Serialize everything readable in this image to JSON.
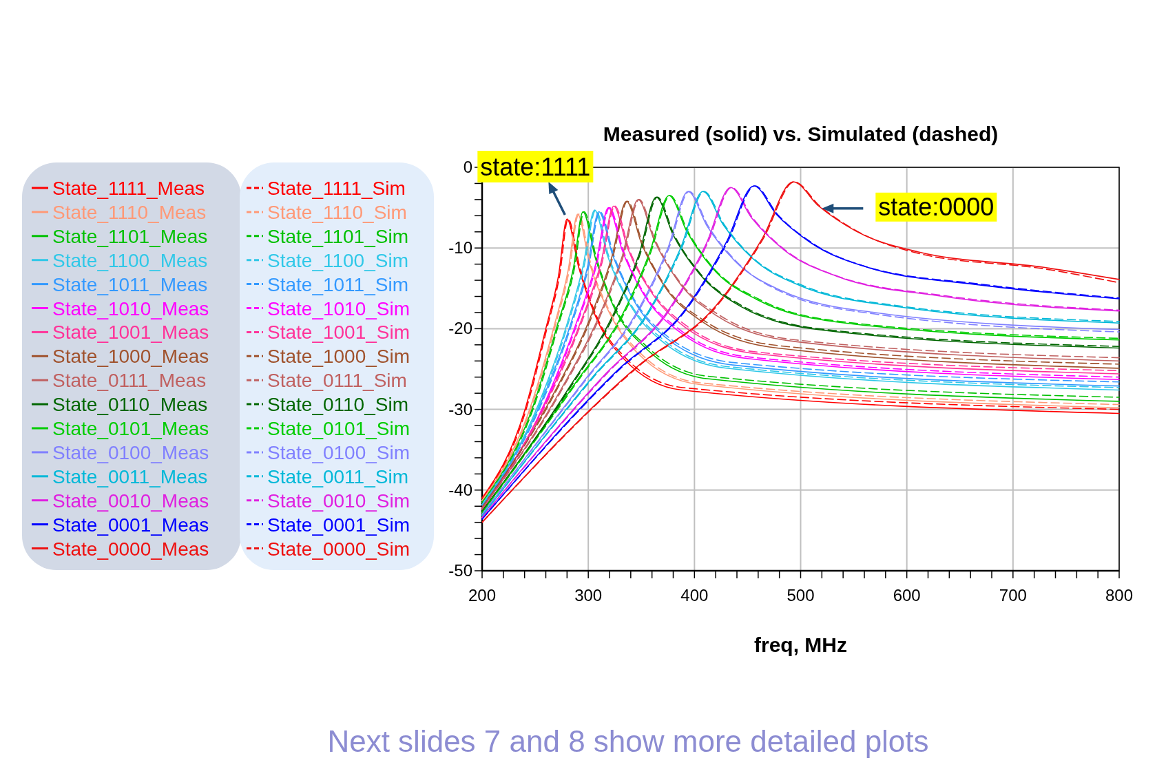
{
  "chart_data": {
    "type": "line",
    "title": "Measured (solid) vs. Simulated (dashed)",
    "xlabel": "freq, MHz",
    "xlim": [
      200,
      800
    ],
    "ylim": [
      -50,
      0
    ],
    "xticks": [
      200,
      {
        "value": 220,
        "label": null
      },
      {
        "value": 240,
        "label": null
      },
      {
        "value": 260,
        "label": null
      },
      {
        "value": 280,
        "label": null
      },
      300,
      {
        "value": 320,
        "label": null
      },
      {
        "value": 340,
        "label": null
      },
      {
        "value": 360,
        "label": null
      },
      {
        "value": 380,
        "label": null
      },
      400,
      {
        "value": 420,
        "label": null
      },
      {
        "value": 440,
        "label": null
      },
      {
        "value": 460,
        "label": null
      },
      {
        "value": 480,
        "label": null
      },
      500,
      {
        "value": 520,
        "label": null
      },
      {
        "value": 540,
        "label": null
      },
      {
        "value": 560,
        "label": null
      },
      {
        "value": 580,
        "label": null
      },
      600,
      {
        "value": 620,
        "label": null
      },
      {
        "value": 640,
        "label": null
      },
      {
        "value": 660,
        "label": null
      },
      {
        "value": 680,
        "label": null
      },
      700,
      {
        "value": 720,
        "label": null
      },
      {
        "value": 740,
        "label": null
      },
      {
        "value": 760,
        "label": null
      },
      {
        "value": 780,
        "label": null
      },
      800
    ],
    "yticks": [
      -50,
      {
        "value": -48,
        "label": null
      },
      {
        "value": -46,
        "label": null
      },
      {
        "value": -44,
        "label": null
      },
      {
        "value": -42,
        "label": null
      },
      -40,
      {
        "value": -38,
        "label": null
      },
      {
        "value": -36,
        "label": null
      },
      {
        "value": -34,
        "label": null
      },
      {
        "value": -32,
        "label": null
      },
      -30,
      {
        "value": -28,
        "label": null
      },
      {
        "value": -26,
        "label": null
      },
      {
        "value": -24,
        "label": null
      },
      {
        "value": -22,
        "label": null
      },
      -20,
      {
        "value": -18,
        "label": null
      },
      {
        "value": -16,
        "label": null
      },
      {
        "value": -14,
        "label": null
      },
      {
        "value": -12,
        "label": null
      },
      -10,
      {
        "value": -8,
        "label": null
      },
      {
        "value": -6,
        "label": null
      },
      {
        "value": -4,
        "label": null
      },
      {
        "value": -2,
        "label": null
      },
      0
    ],
    "grid": true,
    "legend": "left",
    "marker": "none",
    "series": [
      {
        "name": "State_1111_Meas",
        "color": "#ff0000",
        "line_style": "solid",
        "x": [
          200,
          240,
          260,
          272,
          280,
          291,
          307,
          334,
          388,
          800
        ],
        "values": [
          -41,
          -30.2,
          -20.0,
          -13.4,
          -6.4,
          -12.4,
          -18.5,
          -23.8,
          -27.6,
          -30.5
        ]
      },
      {
        "name": "State_1110_Meas",
        "color": "#ff9977",
        "line_style": "solid",
        "x": [
          200,
          245,
          268,
          281,
          290,
          301,
          319,
          347,
          404,
          800
        ],
        "values": [
          -41.3,
          -29.9,
          -19.6,
          -12.8,
          -5.8,
          -11.8,
          -17.8,
          -23.1,
          -26.9,
          -29.8
        ]
      },
      {
        "name": "State_1101_Meas",
        "color": "#00c000",
        "line_style": "solid",
        "x": [
          200,
          248,
          271,
          286,
          295,
          307,
          324,
          354,
          412,
          800
        ],
        "values": [
          -41.5,
          -29.6,
          -19.5,
          -12.5,
          -5.5,
          -11.4,
          -17.3,
          -22.4,
          -26.2,
          -29.0
        ]
      },
      {
        "name": "State_1100_Meas",
        "color": "#30c8e8",
        "line_style": "solid",
        "x": [
          200,
          253,
          280,
          295,
          306,
          318,
          337,
          368,
          430,
          800
        ],
        "values": [
          -41.8,
          -29.4,
          -19.4,
          -12.3,
          -5.3,
          -10.9,
          -16.5,
          -21.4,
          -24.9,
          -27.6
        ]
      },
      {
        "name": "State_1011_Meas",
        "color": "#3399ff",
        "line_style": "solid",
        "x": [
          200,
          255,
          283,
          299,
          310,
          323,
          342,
          373,
          436,
          800
        ],
        "values": [
          -42,
          -29.3,
          -19.6,
          -12.5,
          -5.5,
          -10.9,
          -16.3,
          -21.1,
          -24.5,
          -27.1
        ]
      },
      {
        "name": "State_1010_Meas",
        "color": "#ff00ff",
        "line_style": "solid",
        "x": [
          200,
          260,
          289,
          307,
          319,
          332,
          352,
          385,
          450,
          800
        ],
        "values": [
          -42.2,
          -28.9,
          -19.2,
          -12.0,
          -5.0,
          -10.3,
          -15.7,
          -20.3,
          -23.7,
          -26.3
        ]
      },
      {
        "name": "State_1001_Meas",
        "color": "#ff3399",
        "line_style": "solid",
        "x": [
          200,
          262,
          293,
          312,
          324,
          337,
          358,
          391,
          458,
          800
        ],
        "values": [
          -42.4,
          -28.6,
          -19.1,
          -11.8,
          -4.8,
          -10.0,
          -15.2,
          -19.8,
          -23.1,
          -25.6
        ]
      },
      {
        "name": "State_1000_Meas",
        "color": "#a0522d",
        "line_style": "solid",
        "x": [
          200,
          268,
          302,
          322,
          336,
          350,
          371,
          407,
          478,
          800
        ],
        "values": [
          -42.1,
          -27.9,
          -18.6,
          -11.2,
          -4.2,
          -9.4,
          -14.6,
          -19.1,
          -22.4,
          -24.9
        ]
      },
      {
        "name": "State_0111_Meas",
        "color": "#c06060",
        "line_style": "solid",
        "x": [
          200,
          274,
          310,
          332,
          347,
          362,
          384,
          421,
          495,
          800
        ],
        "values": [
          -42.3,
          -27.6,
          -18.5,
          -11.0,
          -4.0,
          -9.0,
          -14.0,
          -18.4,
          -21.6,
          -24.0
        ]
      },
      {
        "name": "State_0110_Meas",
        "color": "#006600",
        "line_style": "solid",
        "x": [
          200,
          282,
          323,
          348,
          364,
          380,
          404,
          443,
          522,
          800
        ],
        "values": [
          -42.6,
          -27.3,
          -18.4,
          -10.7,
          -3.7,
          -8.4,
          -13.1,
          -17.2,
          -20.2,
          -22.4
        ]
      },
      {
        "name": "State_0101_Meas",
        "color": "#00cc00",
        "line_style": "solid",
        "x": [
          200,
          288,
          332,
          358,
          376,
          393,
          417,
          459,
          542,
          800
        ],
        "values": [
          -42.8,
          -26.7,
          -18.3,
          -10.5,
          -3.5,
          -8.0,
          -12.5,
          -16.4,
          -19.3,
          -21.4
        ]
      },
      {
        "name": "State_0100_Meas",
        "color": "#8080ff",
        "line_style": "solid",
        "x": [
          200,
          297,
          346,
          375,
          394,
          412,
          438,
          482,
          570,
          800
        ],
        "values": [
          -43,
          -26.3,
          -17.9,
          -10.0,
          -3.0,
          -7.3,
          -11.6,
          -15.3,
          -18.0,
          -20.1
        ]
      },
      {
        "name": "State_0011_Meas",
        "color": "#00b8d8",
        "line_style": "solid",
        "x": [
          200,
          304,
          356,
          387,
          408,
          427,
          454,
          500,
          593,
          800
        ],
        "values": [
          -43.2,
          -26.0,
          -18.0,
          -10.0,
          -3.0,
          -7.1,
          -11.2,
          -14.7,
          -17.3,
          -19.3
        ]
      },
      {
        "name": "State_0010_Meas",
        "color": "#e020e0",
        "line_style": "solid",
        "x": [
          200,
          317,
          376,
          411,
          434,
          454,
          484,
          534,
          634,
          800
        ],
        "values": [
          -43.4,
          -25.5,
          -17.6,
          -9.5,
          -2.5,
          -6.3,
          -10.2,
          -13.5,
          -16.0,
          -17.8
        ]
      },
      {
        "name": "State_0001_Meas",
        "color": "#0000ff",
        "line_style": "solid",
        "x": [
          200,
          328,
          392,
          430,
          456,
          477,
          509,
          563,
          670,
          800
        ],
        "values": [
          -43.6,
          -25.1,
          -17.5,
          -9.3,
          -2.3,
          -5.8,
          -9.3,
          -12.4,
          -14.6,
          -16.3
        ]
      },
      {
        "name": "State_0000_Meas",
        "color": "#ee1111",
        "line_style": "solid",
        "x": [
          200,
          347,
          420,
          464,
          493,
          517,
          552,
          611,
          729,
          800
        ],
        "values": [
          -44,
          -24.6,
          -17.2,
          -8.8,
          -1.8,
          -4.8,
          -7.9,
          -10.5,
          -12.4,
          -13.9
        ]
      },
      {
        "name": "State_1111_Sim",
        "color": "#ff0000",
        "line_style": "dashed",
        "x": [
          200,
          241,
          261,
          273,
          281,
          292,
          308,
          335,
          389,
          800
        ],
        "values": [
          -41,
          -30.2,
          -20.0,
          -13.4,
          -6.4,
          -12.4,
          -18.5,
          -23.6,
          -27.3,
          -30.0
        ]
      },
      {
        "name": "State_1110_Sim",
        "color": "#ff9977",
        "line_style": "dashed",
        "x": [
          200,
          246,
          269,
          282,
          291,
          302,
          320,
          348,
          405,
          800
        ],
        "values": [
          -41.3,
          -29.9,
          -19.6,
          -12.8,
          -5.8,
          -11.8,
          -17.8,
          -22.9,
          -26.7,
          -29.4
        ]
      },
      {
        "name": "State_1101_Sim",
        "color": "#00c000",
        "line_style": "dashed",
        "x": [
          200,
          249,
          272,
          287,
          296,
          308,
          325,
          355,
          413,
          800
        ],
        "values": [
          -41.5,
          -29.6,
          -19.5,
          -12.5,
          -5.5,
          -11.4,
          -17.3,
          -22.2,
          -25.9,
          -28.5
        ]
      },
      {
        "name": "State_1100_Sim",
        "color": "#30c8e8",
        "line_style": "dashed",
        "x": [
          200,
          254,
          281,
          296,
          307,
          319,
          338,
          369,
          431,
          800
        ],
        "values": [
          -41.8,
          -29.4,
          -19.4,
          -12.3,
          -5.3,
          -10.9,
          -16.5,
          -21.2,
          -24.7,
          -27.3
        ]
      },
      {
        "name": "State_1011_Sim",
        "color": "#3399ff",
        "line_style": "dashed",
        "x": [
          200,
          256,
          284,
          300,
          311,
          324,
          343,
          374,
          437,
          800
        ],
        "values": [
          -42,
          -29.3,
          -19.6,
          -12.5,
          -5.5,
          -10.9,
          -16.3,
          -20.9,
          -24.2,
          -26.6
        ]
      },
      {
        "name": "State_1010_Sim",
        "color": "#ff00ff",
        "line_style": "dashed",
        "x": [
          200,
          261,
          290,
          308,
          320,
          333,
          353,
          386,
          451,
          800
        ],
        "values": [
          -42.2,
          -28.9,
          -19.2,
          -12.0,
          -5.0,
          -10.3,
          -15.7,
          -20.1,
          -23.5,
          -26.0
        ]
      },
      {
        "name": "State_1001_Sim",
        "color": "#ff3399",
        "line_style": "dashed",
        "x": [
          200,
          263,
          294,
          313,
          325,
          338,
          359,
          392,
          459,
          800
        ],
        "values": [
          -42.4,
          -28.6,
          -19.1,
          -11.8,
          -4.8,
          -10.0,
          -15.2,
          -19.6,
          -22.9,
          -25.2
        ]
      },
      {
        "name": "State_1000_Sim",
        "color": "#a0522d",
        "line_style": "dashed",
        "x": [
          200,
          269,
          303,
          323,
          337,
          351,
          372,
          408,
          479,
          800
        ],
        "values": [
          -42.1,
          -27.9,
          -18.6,
          -11.2,
          -4.2,
          -9.4,
          -14.6,
          -18.9,
          -22.1,
          -24.4
        ]
      },
      {
        "name": "State_0111_Sim",
        "color": "#c06060",
        "line_style": "dashed",
        "x": [
          200,
          275,
          311,
          333,
          348,
          363,
          385,
          422,
          496,
          800
        ],
        "values": [
          -42.3,
          -27.6,
          -18.5,
          -11.0,
          -4.0,
          -9.0,
          -14.0,
          -18.2,
          -21.4,
          -23.6
        ]
      },
      {
        "name": "State_0110_Sim",
        "color": "#006600",
        "line_style": "dashed",
        "x": [
          200,
          283,
          324,
          349,
          365,
          381,
          405,
          444,
          523,
          800
        ],
        "values": [
          -42.6,
          -27.3,
          -18.4,
          -10.7,
          -3.7,
          -8.4,
          -13.1,
          -17.1,
          -20.1,
          -22.2
        ]
      },
      {
        "name": "State_0101_Sim",
        "color": "#00cc00",
        "line_style": "dashed",
        "x": [
          200,
          289,
          333,
          359,
          377,
          394,
          418,
          460,
          543,
          800
        ],
        "values": [
          -42.8,
          -26.7,
          -18.3,
          -10.5,
          -3.5,
          -8.0,
          -12.5,
          -16.3,
          -19.2,
          -21.2
        ]
      },
      {
        "name": "State_0100_Sim",
        "color": "#8080ff",
        "line_style": "dashed",
        "x": [
          200,
          298,
          347,
          376,
          395,
          413,
          439,
          483,
          571,
          800
        ],
        "values": [
          -43,
          -26.3,
          -17.9,
          -10.0,
          -3.0,
          -7.3,
          -11.6,
          -15.5,
          -18.2,
          -20.4
        ]
      },
      {
        "name": "State_0011_Sim",
        "color": "#00b8d8",
        "line_style": "dashed",
        "x": [
          200,
          305,
          357,
          388,
          409,
          428,
          455,
          501,
          594,
          800
        ],
        "values": [
          -43.2,
          -26.0,
          -18.0,
          -10.0,
          -3.0,
          -7.1,
          -11.2,
          -14.6,
          -17.2,
          -19.1
        ]
      },
      {
        "name": "State_0010_Sim",
        "color": "#e020e0",
        "line_style": "dashed",
        "x": [
          200,
          318,
          377,
          412,
          435,
          455,
          485,
          535,
          635,
          800
        ],
        "values": [
          -43.4,
          -25.5,
          -17.6,
          -9.5,
          -2.5,
          -6.3,
          -10.2,
          -13.5,
          -15.9,
          -17.7
        ]
      },
      {
        "name": "State_0001_Sim",
        "color": "#0000ff",
        "line_style": "dashed",
        "x": [
          200,
          329,
          393,
          431,
          457,
          478,
          510,
          564,
          671,
          800
        ],
        "values": [
          -43.6,
          -25.1,
          -17.5,
          -9.3,
          -2.3,
          -5.8,
          -9.3,
          -12.4,
          -14.5,
          -16.2
        ]
      },
      {
        "name": "State_0000_Sim",
        "color": "#ee1111",
        "line_style": "dashed",
        "x": [
          200,
          348,
          421,
          465,
          494,
          518,
          553,
          612,
          730,
          800
        ],
        "values": [
          -44,
          -24.6,
          -17.2,
          -8.8,
          -1.8,
          -4.8,
          -7.9,
          -10.7,
          -12.6,
          -14.3
        ]
      }
    ],
    "annotations": [
      {
        "text": "state:1111",
        "x": 280,
        "y": -6.4
      },
      {
        "text": "state:0000",
        "x": 520,
        "y": -5.1
      },
      "Next slides 7 and 8 show more detailed plots"
    ]
  }
}
